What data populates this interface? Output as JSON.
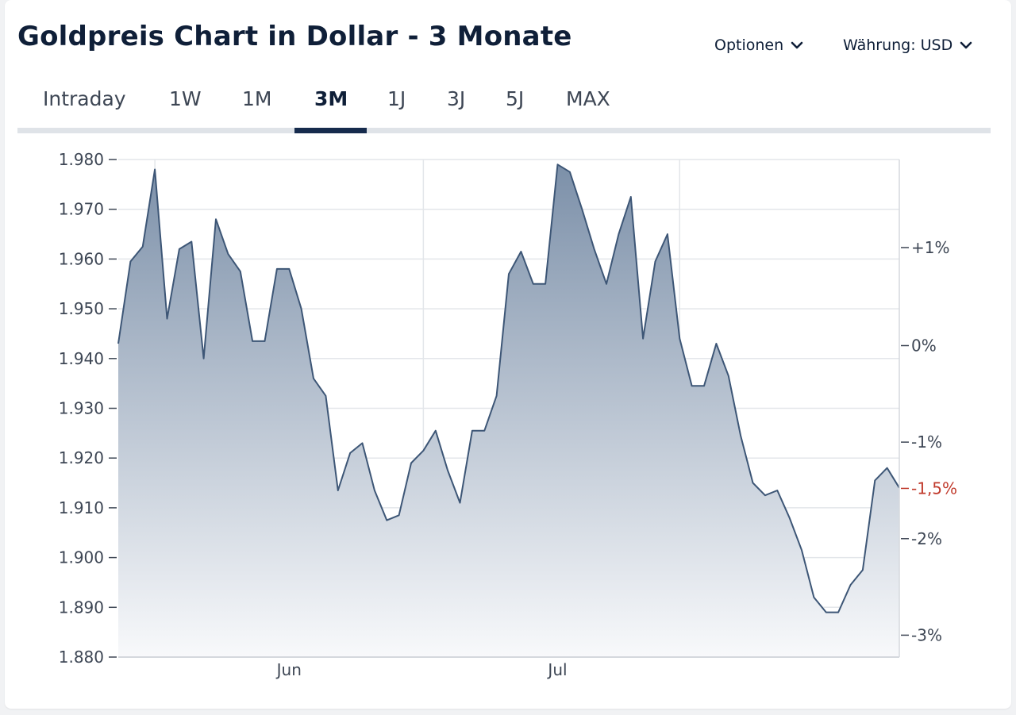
{
  "header": {
    "title": "Goldpreis Chart in Dollar - 3 Monate",
    "options_label": "Optionen",
    "currency_label": "Währung: USD"
  },
  "tabs": [
    {
      "label": "Intraday",
      "active": false
    },
    {
      "label": "1W",
      "active": false
    },
    {
      "label": "1M",
      "active": false
    },
    {
      "label": "3M",
      "active": true
    },
    {
      "label": "1J",
      "active": false
    },
    {
      "label": "3J",
      "active": false
    },
    {
      "label": "5J",
      "active": false
    },
    {
      "label": "MAX",
      "active": false
    }
  ],
  "colors": {
    "line": "#3d5676",
    "fill_top": "#7c90a9",
    "fill_bottom": "#f8f9fb",
    "grid": "#e3e6ea",
    "axis_text": "#3d4654",
    "current_pct": "#c0392b",
    "tab_active": "#162b4d"
  },
  "chart_data": {
    "type": "area",
    "title": "",
    "xlabel": "",
    "ylabel": "",
    "ylim": [
      1880,
      1980
    ],
    "y_ticks": [
      {
        "value": 1980,
        "label": "1.980"
      },
      {
        "value": 1970,
        "label": "1.970"
      },
      {
        "value": 1960,
        "label": "1.960"
      },
      {
        "value": 1950,
        "label": "1.950"
      },
      {
        "value": 1940,
        "label": "1.940"
      },
      {
        "value": 1930,
        "label": "1.930"
      },
      {
        "value": 1920,
        "label": "1.920"
      },
      {
        "value": 1910,
        "label": "1.910"
      },
      {
        "value": 1900,
        "label": "1.900"
      },
      {
        "value": 1890,
        "label": "1.890"
      },
      {
        "value": 1880,
        "label": "1.880"
      }
    ],
    "x_ticks": [
      {
        "index": 14,
        "label": "Jun"
      },
      {
        "index": 36,
        "label": "Jul"
      }
    ],
    "gridlines_at_index": [
      3,
      25,
      46
    ],
    "pct_ticks": [
      {
        "value": 1962.3,
        "label": "+1%"
      },
      {
        "value": 1942.6,
        "label": "0%"
      },
      {
        "value": 1923.2,
        "label": "-1%"
      },
      {
        "value": 1913.9,
        "label": "-1,5%",
        "current": true
      },
      {
        "value": 1903.8,
        "label": "-2%"
      },
      {
        "value": 1884.4,
        "label": "-3%"
      }
    ],
    "grid": true,
    "values": [
      1943,
      1959.5,
      1962.5,
      1978,
      1948,
      1962,
      1963.5,
      1940,
      1968,
      1961,
      1957.5,
      1943.5,
      1943.5,
      1958,
      1958,
      1950,
      1936,
      1932.5,
      1913.5,
      1921,
      1923,
      1913.5,
      1907.5,
      1908.5,
      1919,
      1921.5,
      1925.5,
      1917.5,
      1911,
      1925.5,
      1925.5,
      1932.5,
      1957,
      1961.5,
      1955,
      1955,
      1979,
      1977.5,
      1970,
      1962,
      1955,
      1965,
      1972.5,
      1944,
      1959.5,
      1965,
      1944,
      1934.5,
      1934.5,
      1943,
      1936.5,
      1924.5,
      1915,
      1912.5,
      1913.5,
      1908,
      1901.5,
      1892,
      1889,
      1889,
      1894.5,
      1897.5,
      1915.5,
      1918,
      1914
    ]
  }
}
